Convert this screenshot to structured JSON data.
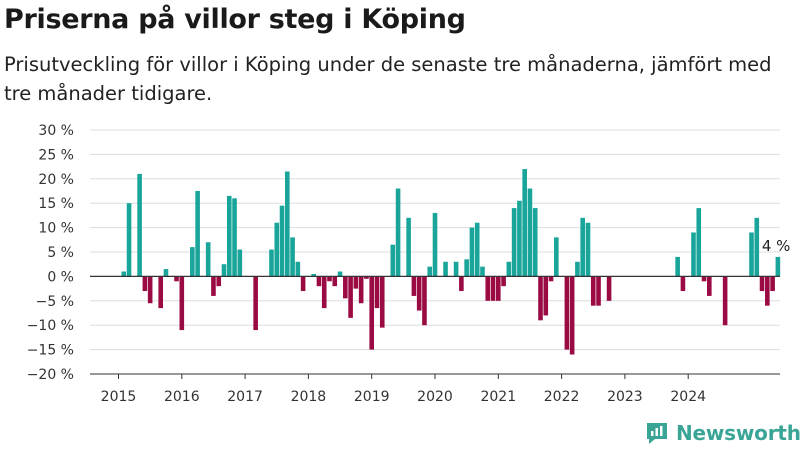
{
  "title": "Priserna på villor steg i Köping",
  "subtitle": "Prisutveckling för villor i Köping under de senaste tre månaderna, jämfört med tre månader tidigare.",
  "brand": {
    "name": "Newsworthy",
    "icon": "bar-chart-logo-icon"
  },
  "colors": {
    "positive": "#1aa59a",
    "negative": "#9b0b43",
    "grid": "#dddddd",
    "axis": "#333333"
  },
  "chart_data": {
    "type": "bar",
    "x_unit": "month",
    "ylim": [
      -20,
      30
    ],
    "yticks": [
      -20,
      -15,
      -10,
      -5,
      0,
      5,
      10,
      15,
      20,
      25,
      30
    ],
    "ytick_labels": [
      "−20 %",
      "−15 %",
      "−10 %",
      "−5 %",
      "0 %",
      "5 %",
      "10 %",
      "15 %",
      "20 %",
      "25 %",
      "30 %"
    ],
    "xticks": [
      "2015",
      "2016",
      "2017",
      "2018",
      "2019",
      "2020",
      "2021",
      "2022",
      "2023",
      "2024"
    ],
    "grid": true,
    "start_month": "2015-01",
    "values": [
      null,
      1,
      15,
      null,
      21,
      -3,
      -5.5,
      null,
      -6.5,
      1.5,
      null,
      -1,
      -11,
      null,
      6,
      17.5,
      null,
      7,
      -4,
      -2,
      2.5,
      16.5,
      16,
      5.5,
      null,
      null,
      -11,
      null,
      null,
      5.5,
      11,
      14.5,
      21.5,
      8,
      3,
      -3,
      null,
      0.5,
      -2,
      -6.5,
      -1,
      -2,
      1,
      -4.5,
      -8.5,
      -2.5,
      -5.5,
      -0.5,
      -15,
      -6.5,
      -10.5,
      null,
      6.5,
      18,
      null,
      12,
      -4,
      -7,
      -10,
      2,
      13,
      null,
      3,
      null,
      3,
      -3,
      3.5,
      10,
      11,
      2,
      -5,
      -5,
      -5,
      -2,
      3,
      14,
      15.5,
      22,
      18,
      14,
      -9,
      -8,
      -1,
      8,
      null,
      -15,
      -16,
      3,
      12,
      11,
      -6,
      -6,
      null,
      -5,
      null,
      null,
      null,
      null,
      null,
      null,
      null,
      null,
      null,
      null,
      null,
      null,
      4,
      -3,
      null,
      9,
      14,
      -1,
      -4,
      null,
      null,
      -10,
      null,
      null,
      null,
      null,
      9,
      12,
      -3,
      -6,
      -3,
      4
    ],
    "annotation": {
      "label": "4 %",
      "value": 4
    }
  }
}
